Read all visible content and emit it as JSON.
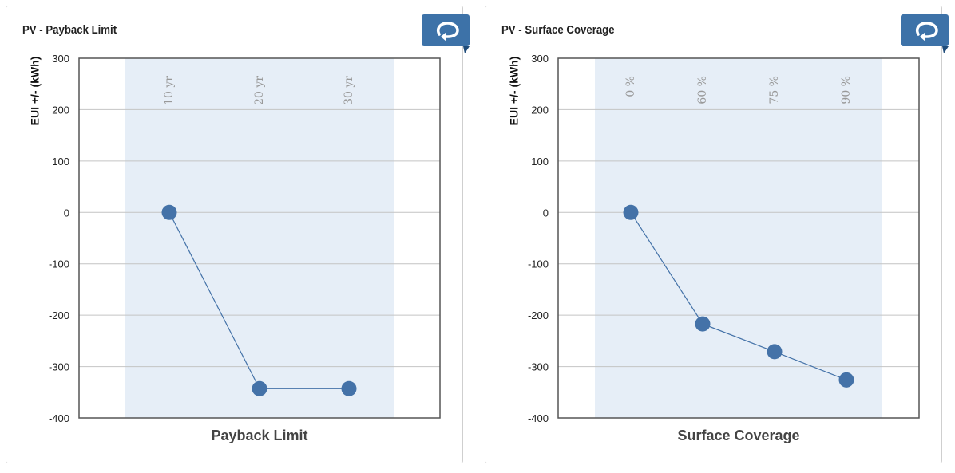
{
  "panels": [
    {
      "title": "PV - Payback Limit",
      "refresh_icon": "refresh-icon",
      "chart_data": {
        "type": "line",
        "categories": [
          "10 yr",
          "20 yr",
          "30 yr"
        ],
        "values": [
          0,
          -343,
          -343
        ],
        "xlabel": "Payback Limit",
        "ylabel": "EUI +/- (kWh)",
        "ylim": [
          -400,
          300
        ],
        "yticks": [
          300,
          200,
          100,
          0,
          -100,
          -200,
          -300,
          -400
        ],
        "grid": true,
        "color": "#4472a8"
      }
    },
    {
      "title": "PV - Surface Coverage",
      "refresh_icon": "refresh-icon",
      "chart_data": {
        "type": "line",
        "categories": [
          "0 %",
          "60 %",
          "75 %",
          "90 %"
        ],
        "values": [
          0,
          -217,
          -271,
          -326
        ],
        "xlabel": "Surface Coverage",
        "ylabel": "EUI +/- (kWh)",
        "ylim": [
          -400,
          300
        ],
        "yticks": [
          300,
          200,
          100,
          0,
          -100,
          -200,
          -300,
          -400
        ],
        "grid": true,
        "color": "#4472a8"
      }
    }
  ],
  "colors": {
    "series": "#4472a8",
    "band": "#e6eef7",
    "button": "#3d72a8",
    "grid": "#c4c4c4"
  }
}
